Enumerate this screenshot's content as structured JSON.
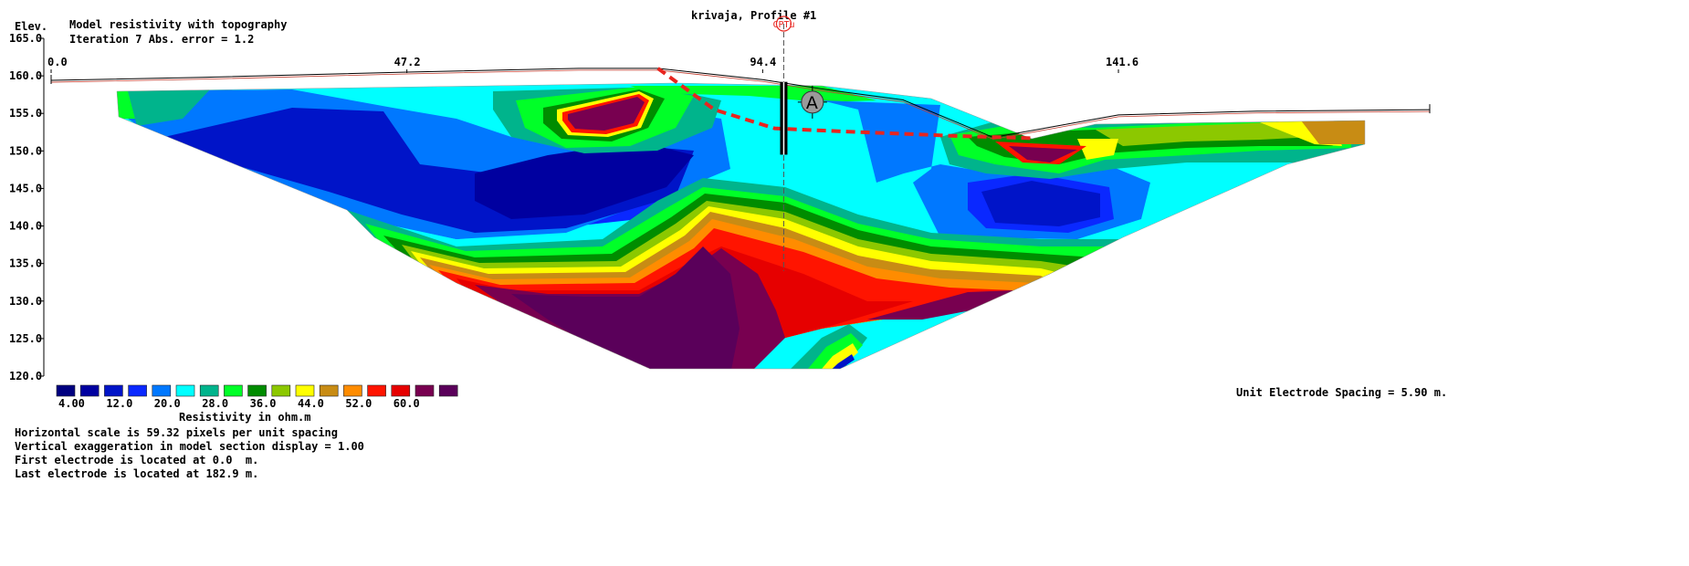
{
  "header": {
    "elev_label": "Elev.",
    "title": "Model resistivity with topography",
    "iteration_line": "Iteration 7 Abs. error = 1.2",
    "profile_title": "krivaja, Profile #1",
    "cpt_label": "CPTu",
    "point_label": "A"
  },
  "chart_data": {
    "type": "heatmap",
    "title": "Model resistivity with topography",
    "ylabel": "Elev.",
    "ylim": [
      120,
      165
    ],
    "xlim": [
      0,
      182.9
    ],
    "y_ticks": [
      "165.0",
      "160.0",
      "155.0",
      "150.0",
      "145.0",
      "140.0",
      "135.0",
      "130.0",
      "125.0",
      "120.0"
    ],
    "y_tick_values": [
      165,
      160,
      155,
      150,
      145,
      140,
      135,
      130,
      125,
      120
    ],
    "x_ticks": [
      "0.0",
      "47.2",
      "94.4",
      "141.6"
    ],
    "x_tick_values": [
      0,
      47.2,
      94.4,
      141.6
    ],
    "topography": {
      "x": [
        0,
        20,
        47.2,
        70,
        80.5,
        94.4,
        104,
        113,
        125,
        141.6,
        160,
        182.9
      ],
      "z": [
        159.4,
        159.8,
        160.5,
        161.0,
        161.0,
        159.5,
        158.0,
        156.8,
        151.8,
        154.8,
        155.3,
        155.5
      ]
    },
    "interpreted_boundary": {
      "x": [
        80.5,
        88,
        96,
        105,
        120,
        130
      ],
      "z": [
        161.0,
        155.5,
        153.0,
        152.6,
        152.0,
        151.7
      ]
    },
    "borehole": {
      "x": 97.2,
      "top": 159.2,
      "bottom": 149.5,
      "guide_bottom": 134.0
    },
    "point_A": {
      "x": 101.0,
      "z": 156.5
    }
  },
  "legend": {
    "title": "Resistivity in ohm.m",
    "colors": [
      "#000080",
      "#0000a0",
      "#0014c8",
      "#0a28ff",
      "#0078ff",
      "#00ffff",
      "#00b48c",
      "#00ff28",
      "#008c00",
      "#8cc800",
      "#ffff00",
      "#c88c14",
      "#ff8c00",
      "#ff1400",
      "#e60000",
      "#780050",
      "#5a005a"
    ],
    "labels": [
      "4.00",
      "12.0",
      "20.0",
      "28.0",
      "36.0",
      "44.0",
      "52.0",
      "60.0"
    ]
  },
  "spacing_note": "Unit Electrode Spacing = 5.90 m.",
  "footer": [
    "Horizontal scale is 59.32 pixels per unit spacing",
    "Vertical exaggeration in model section display = 1.00",
    "First electrode is located at 0.0  m.",
    "Last electrode is located at 182.9 m."
  ]
}
